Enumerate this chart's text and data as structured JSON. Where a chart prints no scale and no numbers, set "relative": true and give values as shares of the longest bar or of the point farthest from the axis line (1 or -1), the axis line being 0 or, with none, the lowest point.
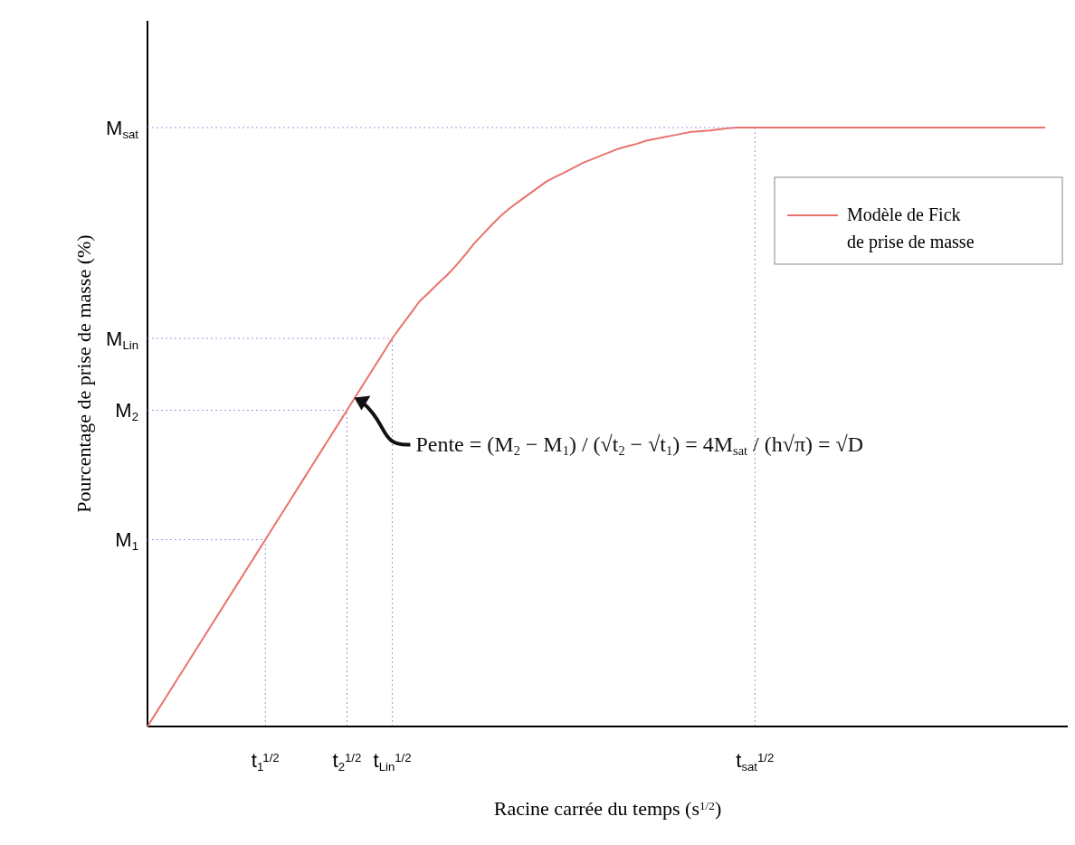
{
  "chart_data": {
    "type": "line",
    "relative": true,
    "xlabel": "Racine carrée du temps (s$^{1/2}$)",
    "ylabel": "Pourcentage de prise de masse (%)",
    "legend": "top right",
    "line_style": "solid",
    "categories": [
      null,
      null,
      null,
      null,
      null,
      null,
      null,
      null,
      null,
      null,
      null,
      null,
      null,
      "t$_{1}$$^{1/2}$",
      null,
      null,
      null,
      null,
      null,
      null,
      null,
      null,
      "t$_{2}$$^{1/2}$",
      null,
      null,
      null,
      null,
      "t$_{Lin}$$^{1/2}$",
      null,
      null,
      null,
      null,
      null,
      null,
      null,
      null,
      null,
      null,
      null,
      null,
      null,
      null,
      null,
      null,
      null,
      null,
      null,
      null,
      null,
      null,
      null,
      null,
      null,
      null,
      null,
      null,
      null,
      null,
      null,
      null,
      null,
      null,
      null,
      null,
      null,
      null,
      null,
      "t$_{sat}$$^{1/2}$",
      null,
      null,
      null,
      null,
      null,
      null,
      null,
      null,
      null,
      null,
      null,
      null,
      null,
      null,
      null,
      null,
      null,
      null,
      null,
      null,
      null,
      null,
      null,
      null,
      null,
      null,
      null,
      null,
      null,
      null,
      null,
      null
    ],
    "series": [
      {
        "name": "Modèle de Fick de prise de masse",
        "color": "#e8736c",
        "values": [
          0,
          0.024,
          0.048,
          0.072,
          0.096,
          0.12,
          0.144,
          0.168,
          0.192,
          0.216,
          0.24,
          0.264,
          0.288,
          0.312,
          0.336,
          0.36,
          0.384,
          0.408,
          0.432,
          0.456,
          0.48,
          0.504,
          0.528,
          0.552,
          0.576,
          0.6,
          0.624,
          0.648,
          0.669,
          0.689,
          0.71,
          0.724,
          0.739,
          0.753,
          0.769,
          0.787,
          0.806,
          0.822,
          0.838,
          0.853,
          0.866,
          0.877,
          0.888,
          0.899,
          0.91,
          0.918,
          0.925,
          0.933,
          0.941,
          0.947,
          0.953,
          0.959,
          0.965,
          0.969,
          0.973,
          0.978,
          0.981,
          0.984,
          0.987,
          0.99,
          0.993,
          0.994,
          0.995,
          0.997,
          0.999,
          1,
          1,
          1,
          1,
          1,
          1,
          1,
          1,
          1,
          1,
          1,
          1,
          1,
          1,
          1,
          1,
          1,
          1,
          1,
          1,
          1,
          1,
          1,
          1,
          1,
          1,
          1,
          1,
          1,
          1,
          1,
          1,
          1,
          1,
          1
        ]
      }
    ],
    "ref_lines": [
      {
        "axis": "x",
        "value": "t$_{1}$$^{1/2}$",
        "color": "#9a9ad8",
        "line_style": "dotted"
      },
      {
        "axis": "x",
        "value": "t$_{2}$$^{1/2}$",
        "color": "#9a9ad8",
        "line_style": "dotted"
      },
      {
        "axis": "x",
        "value": "t$_{Lin}$$^{1/2}$",
        "color": "#9a9ad8",
        "line_style": "dotted"
      },
      {
        "axis": "x",
        "value": "t$_{sat}$$^{1/2}$",
        "color": "#9a9ad8",
        "line_style": "dotted"
      }
    ],
    "annotations": [
      "M$_{sat}$",
      "M$_{Lin}$",
      "M$_{2}$",
      "M$_{1}$",
      "Pente = (M$_{2}$ − M$_{1}$) / (√t$_{2}$ − √t$_{1}$) = 4M$_{sat}$ / (h√π) = √D"
    ]
  }
}
